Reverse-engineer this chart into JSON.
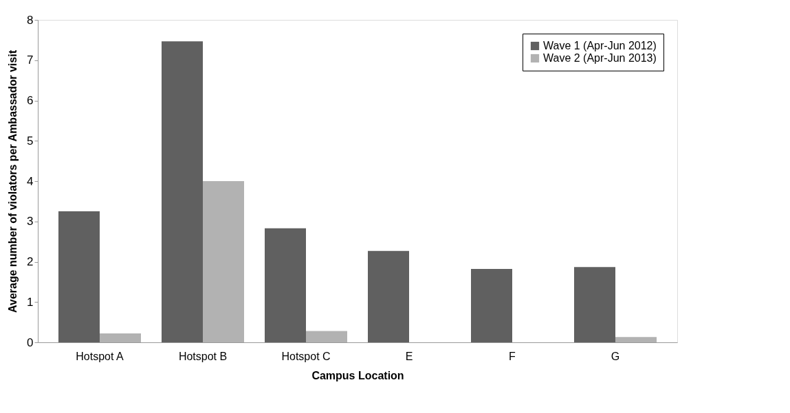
{
  "chart_data": {
    "type": "bar",
    "xlabel": "Campus Location",
    "ylabel": "Average number of violators per Ambassador visit",
    "categories": [
      "Hotspot A",
      "Hotspot B",
      "Hotspot C",
      "E",
      "F",
      "G"
    ],
    "series": [
      {
        "name": "Wave 1 (Apr-Jun 2012)",
        "color": "#606060",
        "values": [
          3.25,
          7.47,
          2.83,
          2.27,
          1.82,
          1.87
        ]
      },
      {
        "name": "Wave 2 (Apr-Jun 2013)",
        "color": "#b2b2b2",
        "values": [
          0.22,
          4.0,
          0.28,
          0,
          0,
          0.13
        ]
      }
    ],
    "ylim": [
      0,
      8
    ],
    "yticks": [
      0,
      1,
      2,
      3,
      4,
      5,
      6,
      7,
      8
    ],
    "grid": false,
    "legend": "top right"
  }
}
